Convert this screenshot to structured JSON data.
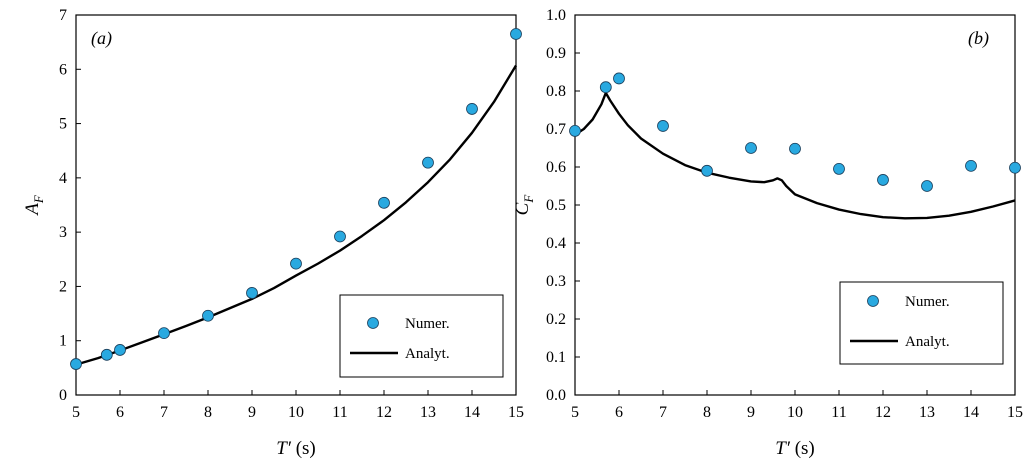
{
  "chart_data": [
    {
      "type": "scatter",
      "panel_label": "(a)",
      "ylabel_main": "A",
      "ylabel_sub": "F",
      "xlabel_main": "T′",
      "xlabel_unit": " (s)",
      "xlim": [
        5,
        15
      ],
      "ylim": [
        0,
        7
      ],
      "xticks": [
        5,
        6,
        7,
        8,
        9,
        10,
        11,
        12,
        13,
        14,
        15
      ],
      "yticks": [
        0,
        1,
        2,
        3,
        4,
        5,
        6,
        7
      ],
      "ytick_decimals": 0,
      "grid": false,
      "legend_position": "bottom-right",
      "series": [
        {
          "name": "Numer.",
          "kind": "markers",
          "color": "#29a9e0",
          "x": [
            5,
            5.7,
            6,
            7,
            8,
            9,
            10,
            11,
            12,
            13,
            14,
            15
          ],
          "y": [
            0.57,
            0.74,
            0.83,
            1.14,
            1.46,
            1.88,
            2.42,
            2.92,
            3.54,
            4.28,
            5.27,
            6.65
          ]
        },
        {
          "name": "Analyt.",
          "kind": "line",
          "color": "#000000",
          "x": [
            5,
            5.5,
            6,
            6.5,
            7,
            7.5,
            8,
            8.5,
            9,
            9.5,
            10,
            10.5,
            11,
            11.5,
            12,
            12.5,
            13,
            13.5,
            14,
            14.5,
            15
          ],
          "y": [
            0.56,
            0.68,
            0.82,
            0.97,
            1.12,
            1.27,
            1.43,
            1.6,
            1.77,
            1.97,
            2.2,
            2.42,
            2.66,
            2.93,
            3.22,
            3.55,
            3.92,
            4.34,
            4.83,
            5.4,
            6.07
          ]
        }
      ]
    },
    {
      "type": "scatter",
      "panel_label": "(b)",
      "ylabel_main": "C",
      "ylabel_sub": "F",
      "xlabel_main": "T′",
      "xlabel_unit": " (s)",
      "xlim": [
        5,
        15
      ],
      "ylim": [
        0,
        1
      ],
      "xticks": [
        5,
        6,
        7,
        8,
        9,
        10,
        11,
        12,
        13,
        14,
        15
      ],
      "yticks": [
        0,
        0.1,
        0.2,
        0.3,
        0.4,
        0.5,
        0.6,
        0.7,
        0.8,
        0.9,
        1.0
      ],
      "ytick_decimals": 1,
      "grid": false,
      "legend_position": "bottom-right",
      "series": [
        {
          "name": "Numer.",
          "kind": "markers",
          "color": "#29a9e0",
          "x": [
            5,
            5.7,
            6,
            7,
            8,
            9,
            10,
            11,
            12,
            13,
            14,
            15
          ],
          "y": [
            0.695,
            0.81,
            0.833,
            0.708,
            0.59,
            0.65,
            0.648,
            0.595,
            0.566,
            0.55,
            0.603,
            0.598
          ]
        },
        {
          "name": "Analyt.",
          "kind": "line",
          "color": "#000000",
          "x": [
            5,
            5.2,
            5.4,
            5.6,
            5.7,
            5.8,
            6,
            6.2,
            6.5,
            7,
            7.5,
            8,
            8.5,
            9,
            9.3,
            9.5,
            9.6,
            9.7,
            9.8,
            10,
            10.5,
            11,
            11.5,
            12,
            12.5,
            13,
            13.5,
            14,
            14.5,
            15
          ],
          "y": [
            0.685,
            0.7,
            0.725,
            0.765,
            0.795,
            0.775,
            0.74,
            0.71,
            0.675,
            0.635,
            0.605,
            0.585,
            0.572,
            0.562,
            0.56,
            0.565,
            0.57,
            0.565,
            0.55,
            0.528,
            0.505,
            0.488,
            0.476,
            0.468,
            0.465,
            0.466,
            0.472,
            0.482,
            0.496,
            0.512
          ]
        }
      ]
    }
  ]
}
